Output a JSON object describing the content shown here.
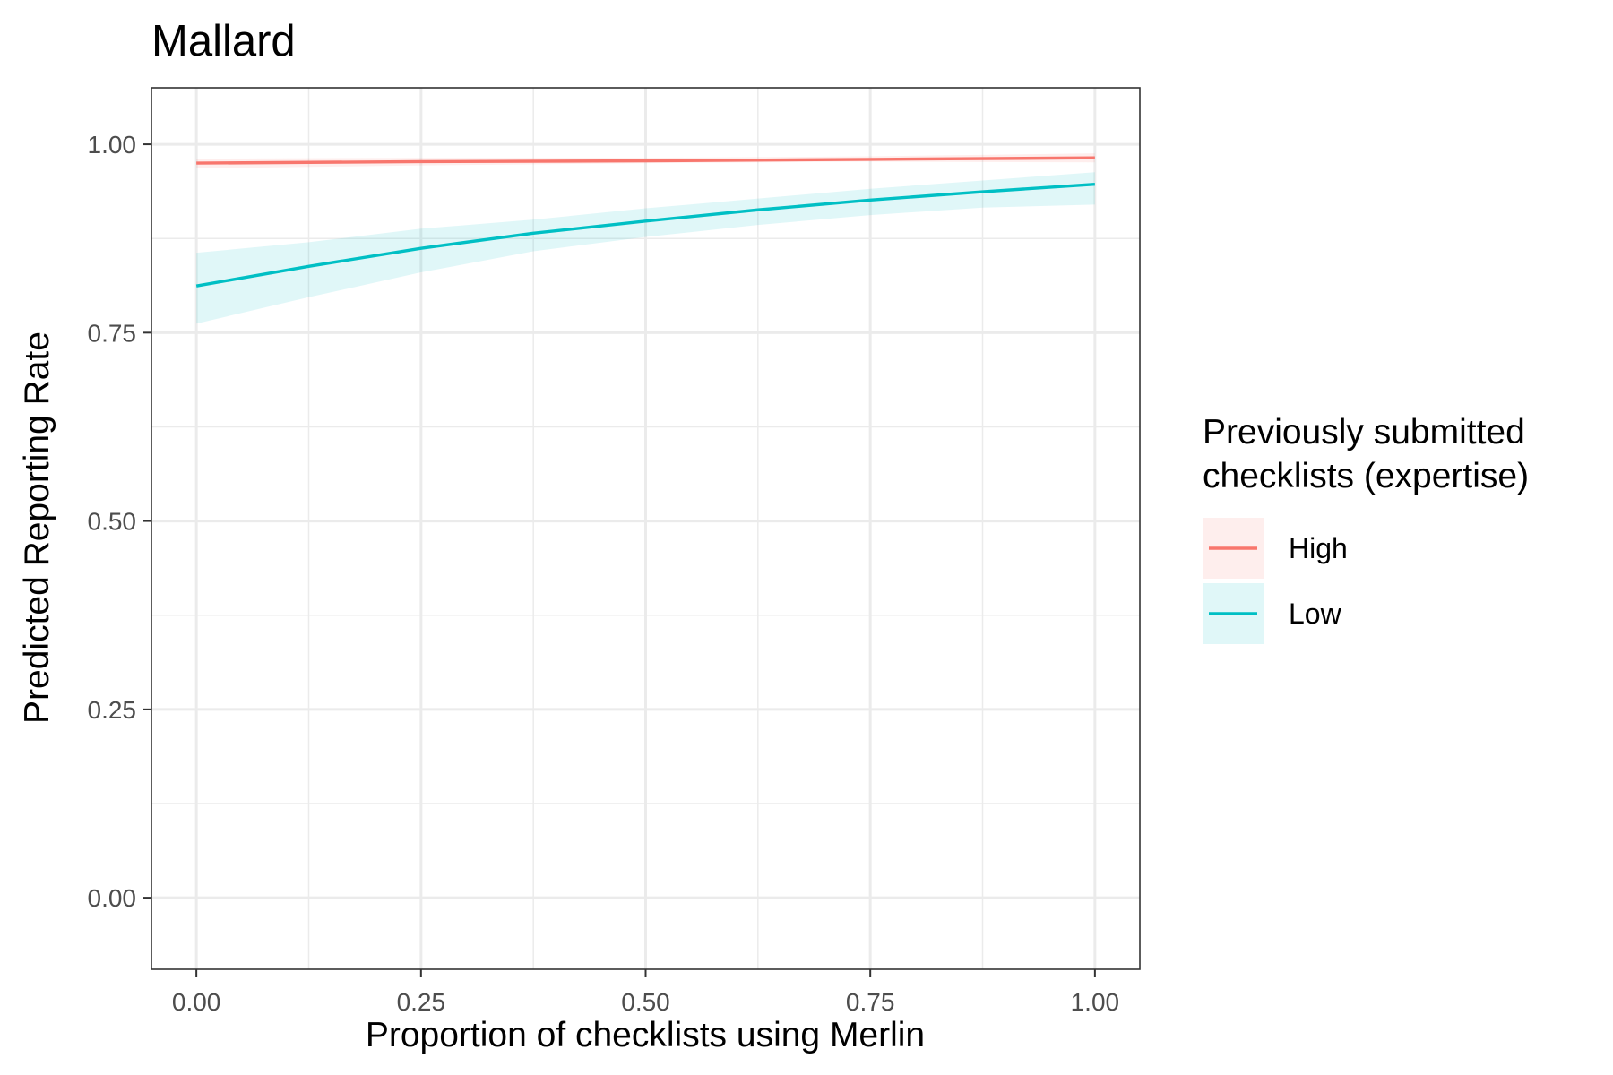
{
  "chart_data": {
    "type": "line",
    "title": "Mallard",
    "xlabel": "Proportion of checklists using Merlin",
    "ylabel": "Predicted Reporting Rate",
    "xlim": [
      -0.05,
      1.05
    ],
    "ylim": [
      -0.095,
      1.075
    ],
    "x_ticks": [
      0,
      0.25,
      0.5,
      0.75,
      1
    ],
    "x_tick_labels": [
      "0.00",
      "0.25",
      "0.50",
      "0.75",
      "1.00"
    ],
    "y_ticks": [
      0,
      0.25,
      0.5,
      0.75,
      1
    ],
    "y_tick_labels": [
      "0.00",
      "0.25",
      "0.50",
      "0.75",
      "1.00"
    ],
    "grid": true,
    "legend": {
      "title_lines": [
        "Previously submitted",
        "checklists (expertise)"
      ],
      "placement": "right"
    },
    "series": [
      {
        "name": "High",
        "color": "#F8766D",
        "x": [
          0,
          0.25,
          0.5,
          0.75,
          1
        ],
        "y": [
          0.975,
          0.977,
          0.978,
          0.98,
          0.982
        ],
        "lower": [
          0.968,
          0.972,
          0.975,
          0.977,
          0.976
        ],
        "upper": [
          0.981,
          0.982,
          0.982,
          0.984,
          0.988
        ]
      },
      {
        "name": "Low",
        "color": "#00BFC4",
        "x": [
          0,
          0.125,
          0.25,
          0.375,
          0.5,
          0.625,
          0.75,
          0.875,
          1
        ],
        "y": [
          0.812,
          0.838,
          0.862,
          0.882,
          0.898,
          0.913,
          0.926,
          0.937,
          0.947
        ],
        "lower": [
          0.762,
          0.797,
          0.83,
          0.858,
          0.877,
          0.893,
          0.906,
          0.916,
          0.92
        ],
        "upper": [
          0.856,
          0.87,
          0.888,
          0.9,
          0.915,
          0.928,
          0.941,
          0.952,
          0.963
        ]
      }
    ]
  }
}
